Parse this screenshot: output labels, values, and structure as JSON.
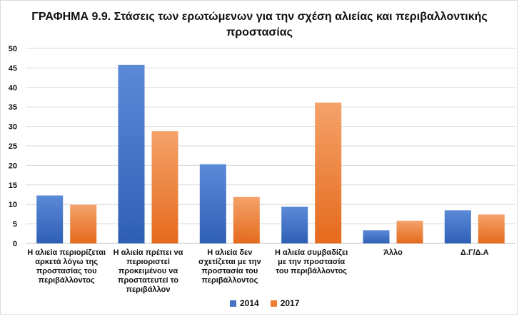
{
  "chart_data": {
    "type": "bar",
    "title": "ΓΡΑΦΗΜΑ 9.9. Στάσεις των ερωτώμενων για την σχέση αλιείας και περιβαλλοντικής προστασίας",
    "categories": [
      "Η αλιεία περιορίζεται αρκετά λόγω της προστασίας του περιβάλλοντος",
      "Η αλιεία πρέπει να περιοριστεί προκειμένου να προστατευτεί το περιβάλλον",
      "Η αλιεία δεν σχετίζεται με την προστασία του περιβάλλοντος",
      "Η αλιεία συμβαδίζει με την προστασία του περιβάλλοντος",
      "Άλλο",
      "Δ.Γ/Δ.Α"
    ],
    "series": [
      {
        "name": "2014",
        "values": [
          12.3,
          45.8,
          20.3,
          9.4,
          3.4,
          8.5
        ],
        "color": "#4472c4"
      },
      {
        "name": "2017",
        "values": [
          9.9,
          28.8,
          11.9,
          36.1,
          5.8,
          7.4
        ],
        "color": "#ed7d31"
      }
    ],
    "ylim": [
      0,
      50
    ],
    "yticks": [
      "0",
      "5",
      "10",
      "15",
      "20",
      "25",
      "30",
      "35",
      "40",
      "45",
      "50"
    ],
    "grid": true,
    "legend": "bottom"
  }
}
